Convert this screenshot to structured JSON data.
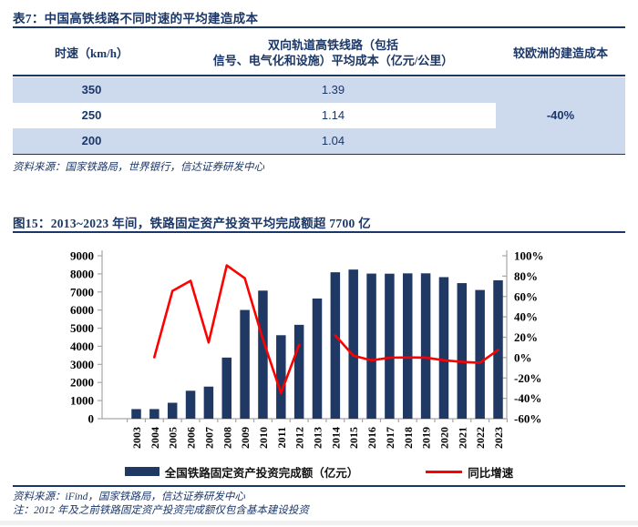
{
  "colors": {
    "navy": "#1B3768",
    "bar": "#1F3864",
    "red": "#FF0000",
    "band": "#CDD9ED",
    "axis_gray": "#A6A6A6",
    "chart_text": "#000000"
  },
  "table_section": {
    "title": "表7：中国高铁线路不同时速的平均建造成本",
    "col1_header": "时速（km/h）",
    "col2_header_line1": "双向轨道高铁线路（包括",
    "col2_header_line2": "信号、电气化和设施）平均成本（亿元/公里）",
    "col3_header": "较欧洲的建造成本",
    "rows": [
      {
        "speed": "350",
        "cost": "1.39"
      },
      {
        "speed": "250",
        "cost": "1.14"
      },
      {
        "speed": "200",
        "cost": "1.04"
      }
    ],
    "vs_europe": "-40%",
    "source": "资料来源：国家铁路局，世界银行，信达证券研发中心"
  },
  "chart_section": {
    "title": "图15：2013~2023 年间，铁路固定资产投资平均完成额超 7700 亿",
    "source": "资料来源：iFind，国家铁路局，信达证券研发中心",
    "note": "注：2012 年及之前铁路固定资产投资完成额仅包含基本建设投资"
  },
  "chart_data": {
    "type": "bar+line",
    "categories": [
      "2003",
      "2004",
      "2005",
      "2006",
      "2007",
      "2008",
      "2009",
      "2010",
      "2011",
      "2012",
      "2013",
      "2014",
      "2015",
      "2016",
      "2017",
      "2018",
      "2019",
      "2020",
      "2021",
      "2022",
      "2023"
    ],
    "series": [
      {
        "name": "全国铁路固定资产投资完成额（亿元）",
        "type": "bar",
        "axis": "left",
        "color": "#1F3864",
        "values": [
          530,
          531,
          880,
          1543,
          1772,
          3376,
          6006,
          7075,
          4611,
          5185,
          6638,
          8088,
          8238,
          8015,
          8010,
          8028,
          8029,
          7819,
          7489,
          7109,
          7645
        ]
      },
      {
        "name": "同比增速",
        "type": "line",
        "axis": "right",
        "color": "#FF0000",
        "values": [
          null,
          0.3,
          65.5,
          75.4,
          14.8,
          90.5,
          77.9,
          17.8,
          -34.8,
          12.4,
          null,
          21.8,
          1.9,
          -2.7,
          -0.1,
          0.2,
          0.0,
          -2.6,
          -4.2,
          -5.1,
          7.5
        ]
      }
    ],
    "left_axis": {
      "min": 0,
      "max": 9000,
      "step": 1000
    },
    "right_axis": {
      "min": -60,
      "max": 100,
      "step": 20,
      "suffix": "%"
    },
    "legend_position": "bottom",
    "grid": false
  }
}
